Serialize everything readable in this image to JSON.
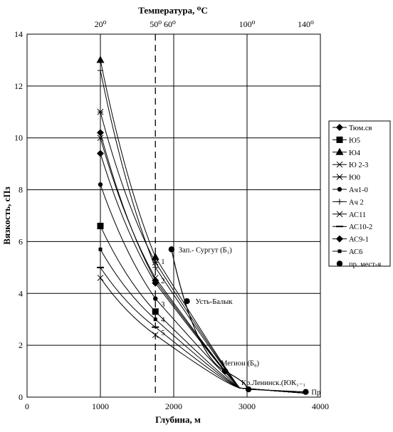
{
  "chart_data": {
    "type": "line",
    "title": "",
    "xlabel": "Глубина, м",
    "ylabel": "Вязкость, сПз",
    "top_axis_label": "Температура, ⁰С",
    "xlim": [
      0,
      4000
    ],
    "ylim": [
      0,
      14
    ],
    "x_ticks": [
      0,
      1000,
      2000,
      3000,
      4000
    ],
    "y_ticks": [
      0,
      2,
      4,
      6,
      8,
      10,
      12,
      14
    ],
    "grid": true,
    "legend_position": "right",
    "top_ticks": [
      {
        "label": "20⁰",
        "x": 1000
      },
      {
        "label": "50⁰ 60⁰",
        "x": 1850
      },
      {
        "label": "100⁰",
        "x": 3000
      },
      {
        "label": "140⁰",
        "x": 3800
      }
    ],
    "reference_line": {
      "x": 1750,
      "style": "dashed"
    },
    "series": [
      {
        "name": "Тюм.св",
        "marker": "diamond",
        "x": [
          1000,
          1750
        ],
        "y": [
          10.2,
          4.5
        ]
      },
      {
        "name": "Ю5",
        "marker": "square",
        "x": [
          1000,
          1750
        ],
        "y": [
          6.6,
          3.3
        ]
      },
      {
        "name": "Ю4",
        "marker": "triangle",
        "x": [
          1000,
          1750
        ],
        "y": [
          13.0,
          5.4
        ]
      },
      {
        "name": "Ю 2-3",
        "marker": "x",
        "x": [
          1000,
          1750
        ],
        "y": [
          4.6,
          2.4
        ]
      },
      {
        "name": "Ю0",
        "marker": "asterisk",
        "x": [
          1000,
          1750
        ],
        "y": [
          11.0,
          5.2
        ]
      },
      {
        "name": "Ач1-0",
        "marker": "circle",
        "x": [
          1000,
          1750
        ],
        "y": [
          8.2,
          3.8
        ]
      },
      {
        "name": "Ач 2",
        "marker": "plus",
        "x": [
          1000,
          1750
        ],
        "y": [
          12.6,
          5.0
        ]
      },
      {
        "name": "АС11",
        "marker": "x",
        "x": [
          1000,
          1750
        ],
        "y": [
          10.0,
          4.6
        ]
      },
      {
        "name": "АС10-2",
        "marker": "dash",
        "x": [
          1000,
          1750
        ],
        "y": [
          5.0,
          2.7
        ]
      },
      {
        "name": "АС9-1",
        "marker": "diamond",
        "x": [
          1000,
          1750
        ],
        "y": [
          9.4,
          4.4
        ]
      },
      {
        "name": "АС6",
        "marker": "square-small",
        "x": [
          1000,
          1750
        ],
        "y": [
          5.7,
          3.0
        ]
      },
      {
        "name": "пр. мест-я",
        "marker": "circle-large",
        "x": [
          1970,
          2180,
          2700,
          3020,
          3800
        ],
        "y": [
          5.7,
          3.7,
          1.0,
          0.3,
          0.2
        ]
      }
    ],
    "curve_labels": [
      "1",
      "2",
      "3",
      "4",
      "5"
    ],
    "annotations": [
      {
        "text": "Зап.- Сургут (Б₁)",
        "x": 1970,
        "y": 5.7
      },
      {
        "text": "Усть-Балык",
        "x": 2180,
        "y": 3.7
      },
      {
        "text": "Мегион (Б₈)",
        "x": 2700,
        "y": 1.0
      },
      {
        "text": "Кр.Ленинск.(ЮК₁₋₁",
        "x": 3020,
        "y": 0.3
      },
      {
        "text": "Пр",
        "x": 3800,
        "y": 0.2
      }
    ]
  }
}
